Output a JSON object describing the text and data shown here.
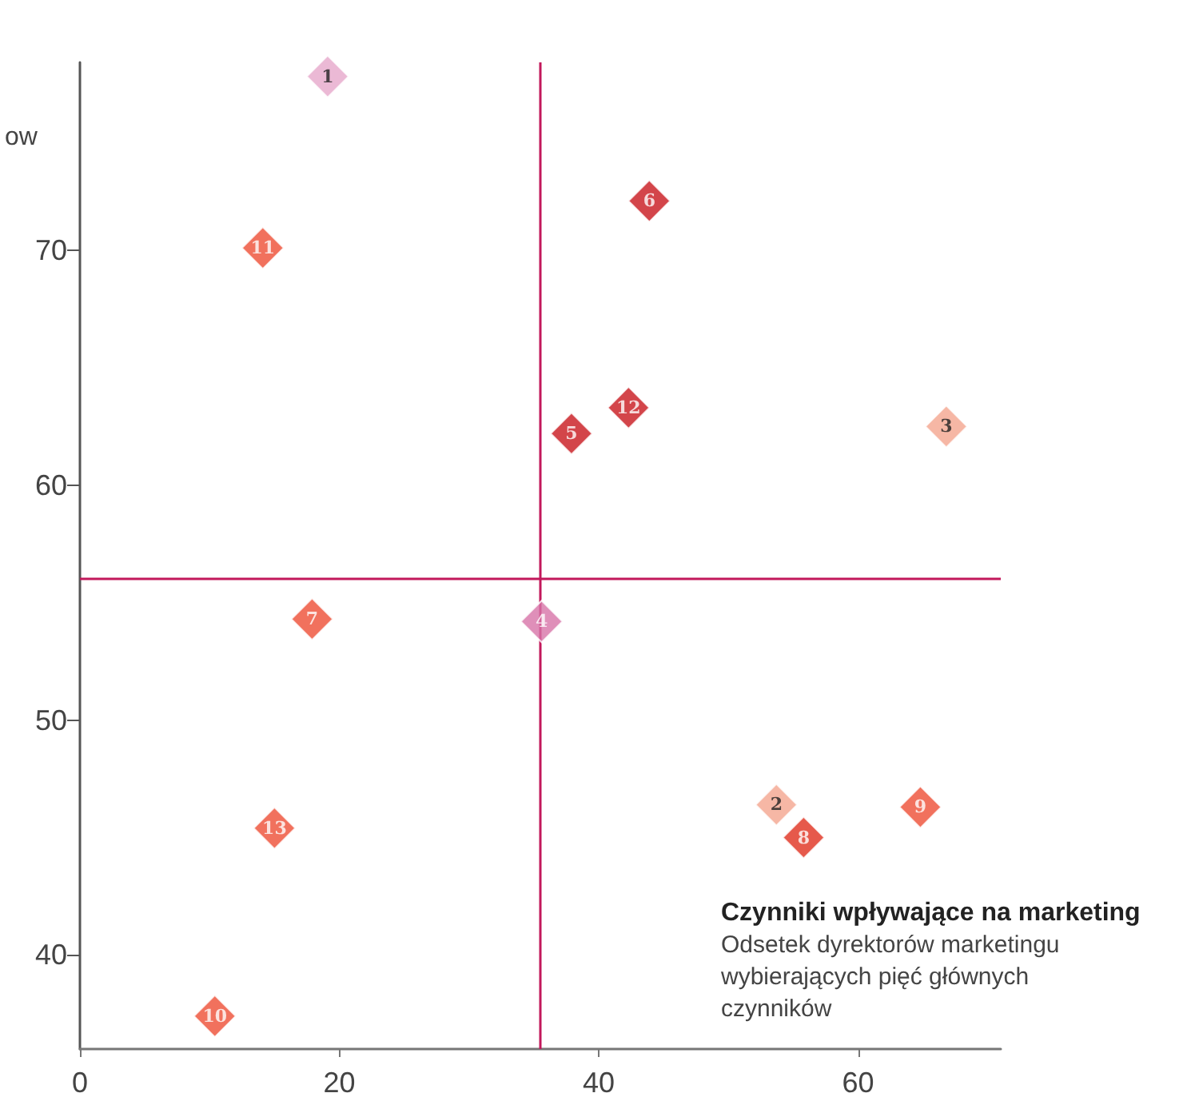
{
  "chart_data": {
    "type": "scatter",
    "title": "Czynniki wpływające na marketing",
    "subtitle": "Odsetek dyrektorów marketingu wybierających pięć głównych czynników",
    "ylabel": "ow",
    "x": [
      19.1,
      53.7,
      66.8,
      35.6,
      37.9,
      43.9,
      17.9,
      55.8,
      64.8,
      10.4,
      14.1,
      42.3,
      15.0
    ],
    "values": [
      77.4,
      46.4,
      62.5,
      54.2,
      62.2,
      72.1,
      54.3,
      45.0,
      46.3,
      37.4,
      70.1,
      63.3,
      45.4
    ],
    "annotations": [
      {
        "text": "1",
        "x": 19.1,
        "y": 77.4
      },
      {
        "text": "2",
        "x": 53.7,
        "y": 46.4
      },
      {
        "text": "3",
        "x": 66.8,
        "y": 62.5
      },
      {
        "text": "4",
        "x": 35.6,
        "y": 54.2
      },
      {
        "text": "5",
        "x": 37.9,
        "y": 62.2
      },
      {
        "text": "6",
        "x": 43.9,
        "y": 72.1
      },
      {
        "text": "7",
        "x": 17.9,
        "y": 54.3
      },
      {
        "text": "8",
        "x": 55.8,
        "y": 45.0
      },
      {
        "text": "9",
        "x": 64.8,
        "y": 46.3
      },
      {
        "text": "10",
        "x": 10.4,
        "y": 37.4
      },
      {
        "text": "11",
        "x": 14.1,
        "y": 70.1
      },
      {
        "text": "12",
        "x": 42.3,
        "y": 63.3
      },
      {
        "text": "13",
        "x": 15.0,
        "y": 45.4
      }
    ],
    "colors": [
      "#e6a8cb",
      "#f4a58e",
      "#f4a58e",
      "#d773a8",
      "#c8161d",
      "#c8161d",
      "#ee4d35",
      "#e0301e",
      "#ee4d35",
      "#ee4d35",
      "#ee4d35",
      "#c8161d",
      "#ee4d35"
    ],
    "marker": "diamond",
    "xlim": [
      0,
      71
    ],
    "xticks": [
      0,
      20,
      40,
      60
    ],
    "ylim": [
      36,
      78
    ],
    "yticks": [
      40,
      50,
      60,
      70
    ],
    "ref_lines": [
      {
        "axis": "x",
        "value": 35.5,
        "color": "#c2185b"
      },
      {
        "axis": "y",
        "value": 56,
        "color": "#c2185b"
      }
    ],
    "grid": false
  }
}
